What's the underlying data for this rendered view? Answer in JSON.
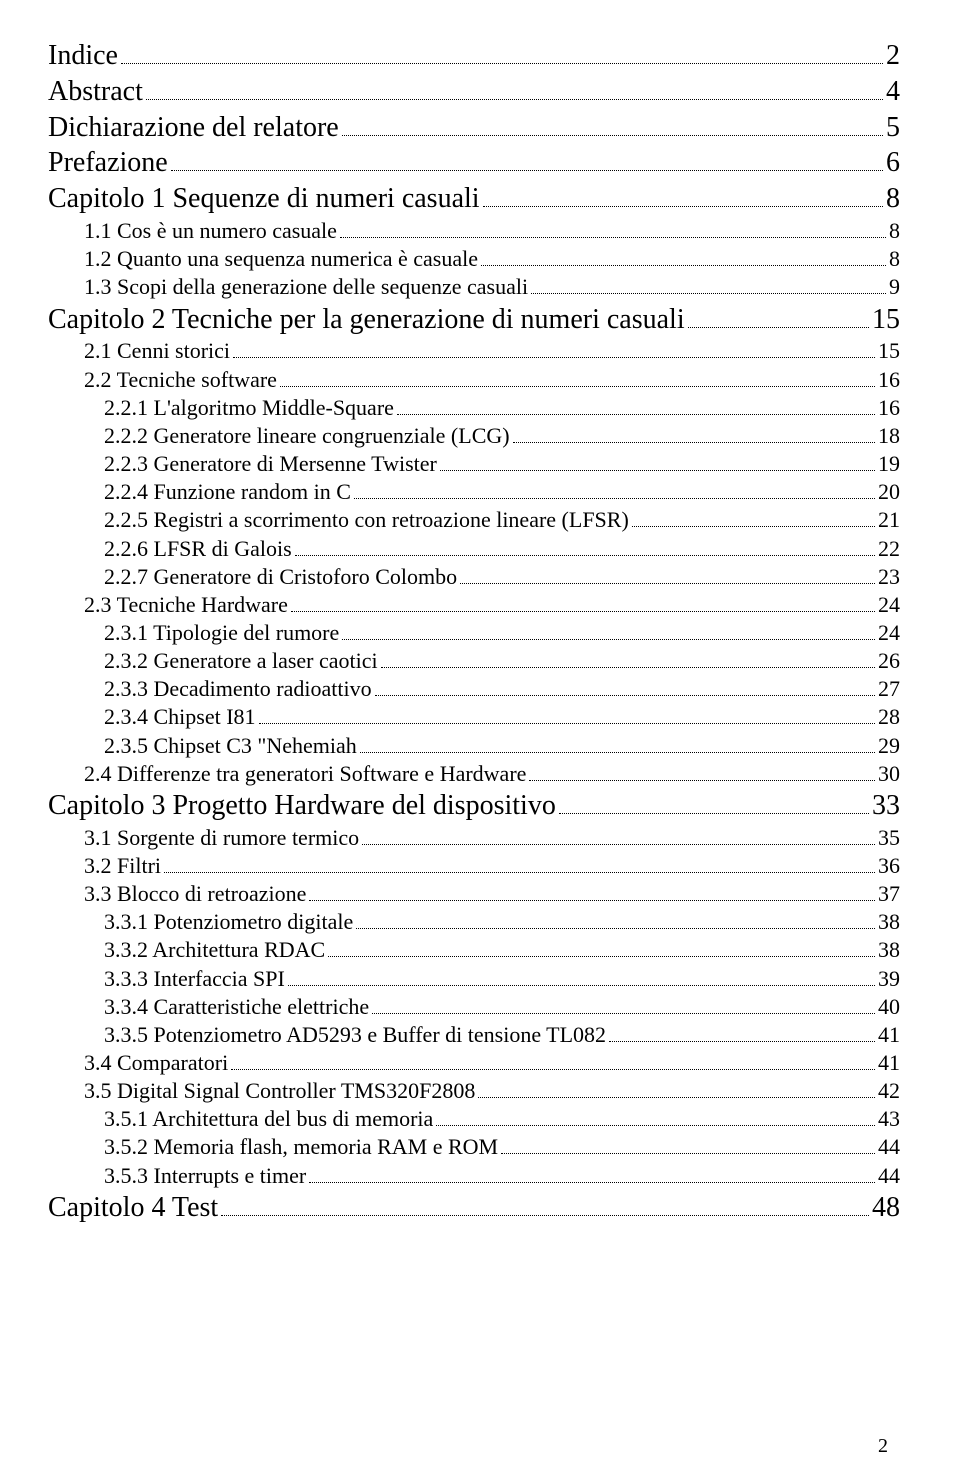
{
  "page_number": "2",
  "entries": [
    {
      "level": 0,
      "label": "Indice",
      "page": "2"
    },
    {
      "level": 0,
      "label": "Abstract",
      "page": "4"
    },
    {
      "level": 0,
      "label": "Dichiarazione del relatore",
      "page": "5"
    },
    {
      "level": 0,
      "label": "Prefazione",
      "page": "6"
    },
    {
      "level": 0,
      "label": "Capitolo 1 Sequenze di numeri casuali",
      "page": "8"
    },
    {
      "level": 1,
      "label": "1.1 Cos è un numero casuale",
      "page": "8"
    },
    {
      "level": 1,
      "label": "1.2 Quanto una sequenza numerica è casuale",
      "page": "8"
    },
    {
      "level": 1,
      "label": "1.3 Scopi della generazione delle sequenze casuali",
      "page": "9"
    },
    {
      "level": 0,
      "label": "Capitolo 2 Tecniche per la generazione di numeri casuali",
      "page": "15"
    },
    {
      "level": 1,
      "label": "2.1 Cenni storici",
      "page": "15"
    },
    {
      "level": 1,
      "label": "2.2 Tecniche software",
      "page": "16"
    },
    {
      "level": 2,
      "label": "2.2.1 L'algoritmo Middle-Square",
      "page": "16"
    },
    {
      "level": 2,
      "label": "2.2.2 Generatore lineare congruenziale  (LCG)",
      "page": "18"
    },
    {
      "level": 2,
      "label": "2.2.3 Generatore di Mersenne Twister",
      "page": "19"
    },
    {
      "level": 2,
      "label": "2.2.4 Funzione random in C",
      "page": "20"
    },
    {
      "level": 2,
      "label": "2.2.5 Registri a scorrimento con retroazione lineare (LFSR)",
      "page": "21"
    },
    {
      "level": 2,
      "label": "2.2.6 LFSR di Galois",
      "page": " 22"
    },
    {
      "level": 2,
      "label": "2.2.7 Generatore di Cristoforo Colombo",
      "page": " 23"
    },
    {
      "level": 1,
      "label": "2.3 Tecniche Hardware",
      "page": "24"
    },
    {
      "level": 2,
      "label": "2.3.1 Tipologie del rumore",
      "page": "24"
    },
    {
      "level": 2,
      "label": "2.3.2 Generatore a laser caotici",
      "page": "26"
    },
    {
      "level": 2,
      "label": "2.3.3 Decadimento radioattivo",
      "page": "27"
    },
    {
      "level": 2,
      "label": "2.3.4 Chipset I81",
      "page": "28"
    },
    {
      "level": 2,
      "label": "2.3.5 Chipset C3  \"Nehemiah",
      "page": "29"
    },
    {
      "level": 1,
      "label": "2.4 Differenze tra generatori Software e Hardware",
      "page": "30"
    },
    {
      "level": 0,
      "label": "Capitolo 3 Progetto Hardware del dispositivo",
      "page": "33"
    },
    {
      "level": 1,
      "label": "3.1 Sorgente di rumore termico",
      "page": "35"
    },
    {
      "level": 1,
      "label": "3.2 Filtri",
      "page": "36"
    },
    {
      "level": 1,
      "label": "3.3 Blocco di retroazione",
      "page": "37"
    },
    {
      "level": 2,
      "label": "3.3.1 Potenziometro digitale",
      "page": "38"
    },
    {
      "level": 2,
      "label": "3.3.2 Architettura RDAC",
      "page": "38"
    },
    {
      "level": 2,
      "label": "3.3.3 Interfaccia SPI",
      "page": "39"
    },
    {
      "level": 2,
      "label": "3.3.4 Caratteristiche elettriche",
      "page": "40"
    },
    {
      "level": 2,
      "label": "3.3.5 Potenziometro AD5293 e Buffer di tensione TL082",
      "page": "41"
    },
    {
      "level": 1,
      "label": "3.4 Comparatori",
      "page": " 41"
    },
    {
      "level": 1,
      "label": "3.5 Digital Signal Controller TMS320F2808",
      "page": "42"
    },
    {
      "level": 2,
      "label": "3.5.1 Architettura del bus di memoria",
      "page": "43"
    },
    {
      "level": 2,
      "label": "3.5.2 Memoria flash, memoria RAM e ROM",
      "page": "44"
    },
    {
      "level": 2,
      "label": "3.5.3 Interrupts e timer",
      "page": "44"
    },
    {
      "level": 0,
      "label": "Capitolo 4 Test",
      "page": "48"
    }
  ]
}
